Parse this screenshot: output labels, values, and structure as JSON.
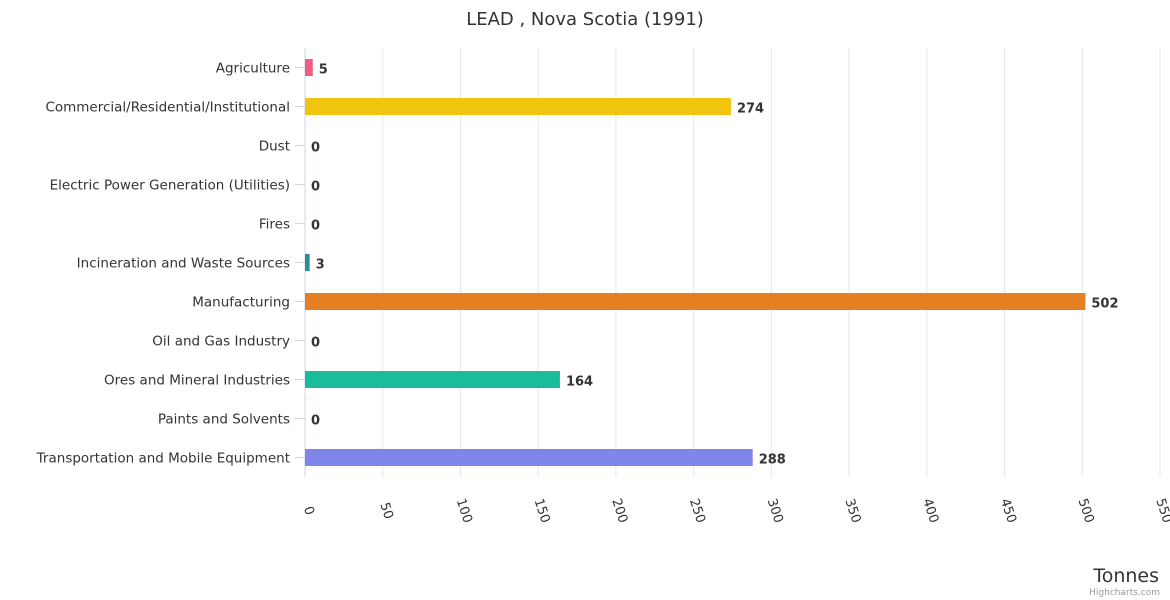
{
  "chart_data": {
    "type": "bar",
    "orientation": "horizontal",
    "title": "LEAD , Nova Scotia (1991)",
    "xlabel": "",
    "ylabel": "Tonnes",
    "categories": [
      "Agriculture",
      "Commercial/Residential/Institutional",
      "Dust",
      "Electric Power Generation (Utilities)",
      "Fires",
      "Incineration and Waste Sources",
      "Manufacturing",
      "Oil and Gas Industry",
      "Ores and Mineral Industries",
      "Paints and Solvents",
      "Transportation and Mobile Equipment"
    ],
    "values": [
      5,
      274,
      0,
      0,
      0,
      3,
      502,
      0,
      164,
      0,
      288
    ],
    "colors": [
      "#f15c80",
      "#f1c40f",
      "#2b908f",
      "#e4d354",
      "#8085e9",
      "#2b908f",
      "#e67e22",
      "#434348",
      "#1abc9c",
      "#90ed7d",
      "#8085e9"
    ],
    "value_ticks": [
      0,
      50,
      100,
      150,
      200,
      250,
      300,
      350,
      400,
      450,
      500,
      550
    ],
    "value_range": [
      0,
      550
    ],
    "grid": true,
    "legend": "none",
    "credits": "Highcharts.com"
  }
}
